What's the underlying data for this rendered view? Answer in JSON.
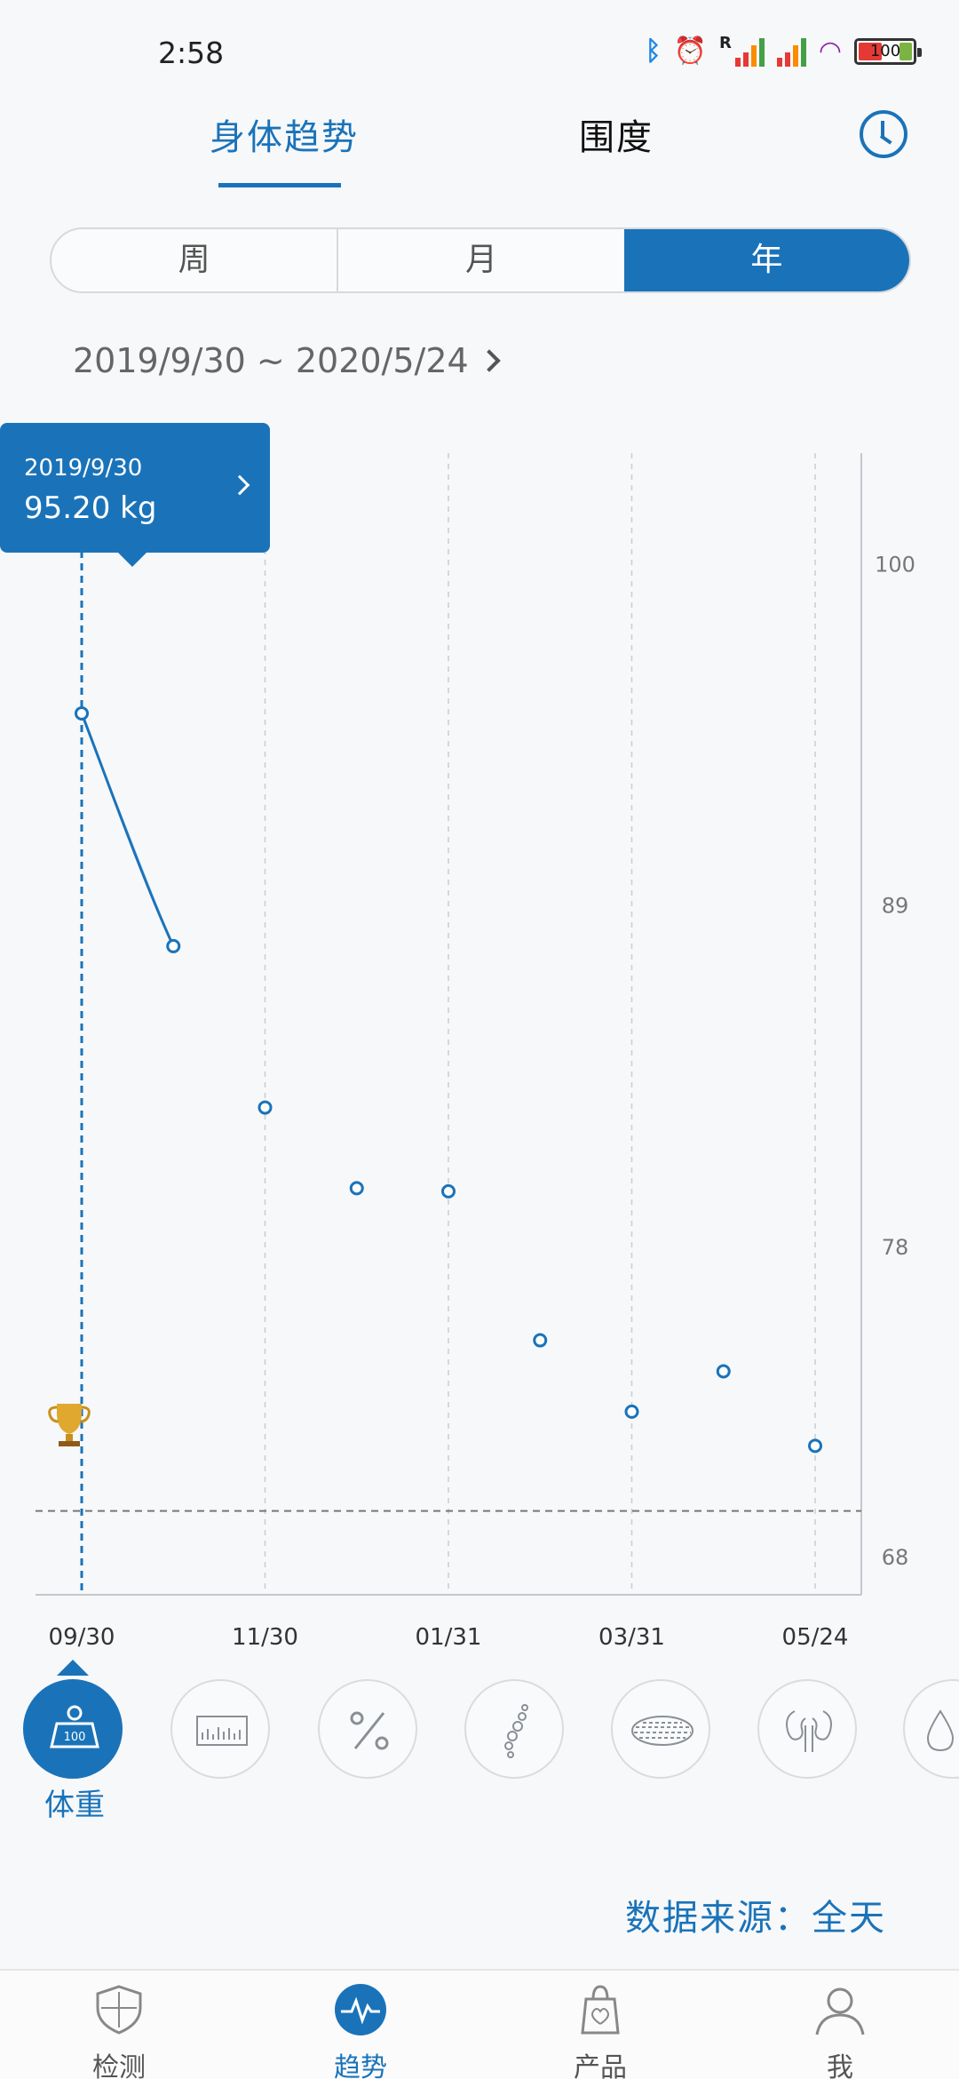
{
  "status_bar": {
    "time": "2:58",
    "battery": "100"
  },
  "tabs": [
    {
      "label": "身体趋势"
    },
    {
      "label": "围度"
    }
  ],
  "period": {
    "options": [
      "周",
      "月",
      "年"
    ],
    "selected": "年"
  },
  "date_range": "2019/9/30 ~ 2020/5/24",
  "tooltip": {
    "date": "2019/9/30",
    "value": "95.20 kg"
  },
  "chart_data": {
    "type": "area",
    "x": [
      "09/30",
      "10/31",
      "11/30",
      "12/31",
      "01/31",
      "02/29",
      "03/31",
      "04/30",
      "05/24"
    ],
    "y": [
      95.2,
      87.7,
      82.5,
      79.9,
      79.8,
      75.0,
      72.7,
      74.0,
      71.6
    ],
    "x_tick_labels": [
      "09/30",
      "11/30",
      "01/31",
      "03/31",
      "05/24"
    ],
    "y_tick_labels": [
      "100",
      "89",
      "78",
      "68"
    ],
    "ylim": [
      66.8,
      103.3
    ],
    "target_line": 69.5,
    "selected_index": 0,
    "color": "#1a73b9",
    "grid": "vertical dashed",
    "xlabel": "",
    "ylabel": ""
  },
  "metrics": [
    {
      "icon": "weight-scale-icon",
      "label": "体重",
      "badge": "100"
    },
    {
      "icon": "bar-chart-icon"
    },
    {
      "icon": "percent-icon"
    },
    {
      "icon": "spine-icon"
    },
    {
      "icon": "fat-cells-icon"
    },
    {
      "icon": "kidney-icon"
    },
    {
      "icon": "water-drop-icon"
    }
  ],
  "data_source": "数据来源：全天",
  "bottom_nav": [
    {
      "label": "检测",
      "icon": "shield-icon"
    },
    {
      "label": "趋势",
      "icon": "pulse-icon"
    },
    {
      "label": "产品",
      "icon": "bag-icon"
    },
    {
      "label": "我",
      "icon": "user-icon"
    }
  ]
}
